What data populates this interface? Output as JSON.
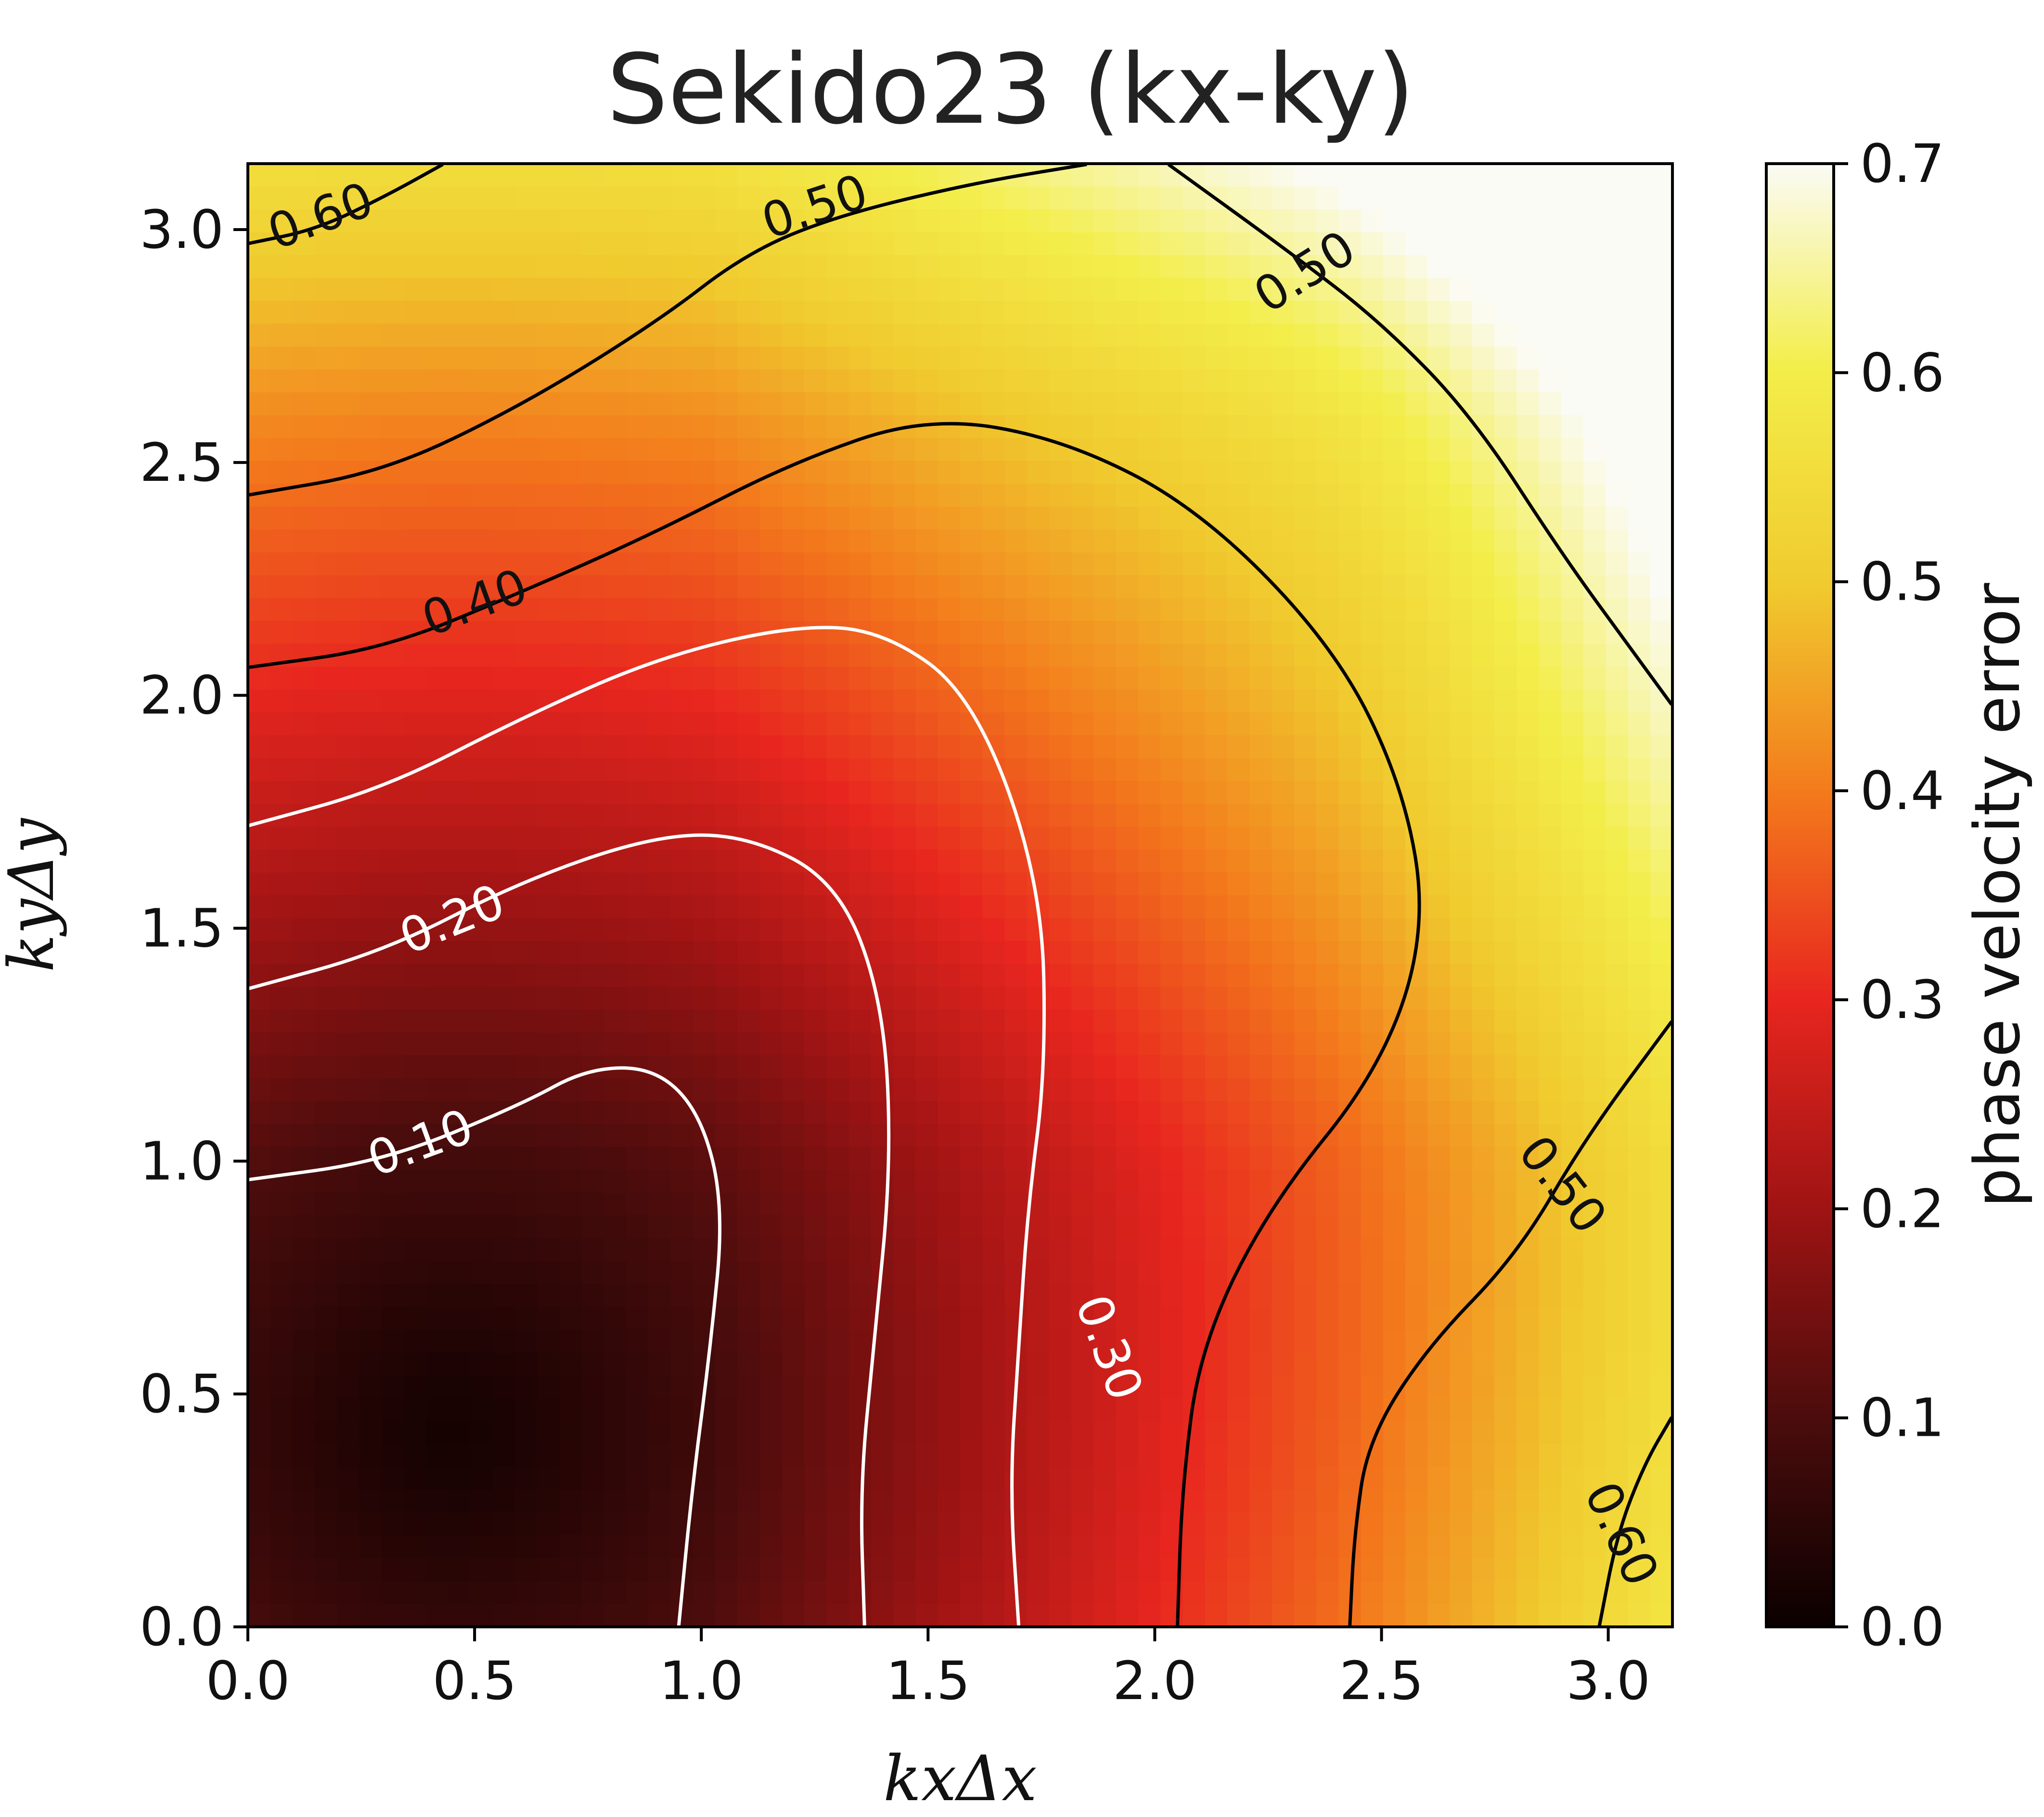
{
  "chart_data": {
    "type": "heatmap",
    "title": "Sekido23 (kx-ky)",
    "xlabel": "kxΔx",
    "ylabel": "kyΔy",
    "xlim": [
      0,
      3.1416
    ],
    "ylim": [
      0,
      3.1416
    ],
    "xticks": [
      0.0,
      0.5,
      1.0,
      1.5,
      2.0,
      2.5,
      3.0
    ],
    "yticks": [
      0.0,
      0.5,
      1.0,
      1.5,
      2.0,
      2.5,
      3.0
    ],
    "tick_labels": [
      "0.0",
      "0.5",
      "1.0",
      "1.5",
      "2.0",
      "2.5",
      "3.0"
    ],
    "colormap": "hot",
    "colorbar": {
      "label": "phase velocity error",
      "range": [
        0.0,
        0.7
      ],
      "ticks": [
        "0.0",
        "0.1",
        "0.2",
        "0.3",
        "0.4",
        "0.5",
        "0.6",
        "0.7"
      ]
    },
    "contours": [
      {
        "level": 0.1,
        "label": "0.10",
        "color": "#ffffff",
        "points": [
          [
            0.0,
            0.96
          ],
          [
            0.3,
            1.0
          ],
          [
            0.6,
            1.12
          ],
          [
            0.75,
            1.2
          ],
          [
            0.9,
            1.2
          ],
          [
            1.0,
            1.1
          ],
          [
            1.05,
            0.9
          ],
          [
            1.02,
            0.6
          ],
          [
            0.98,
            0.3
          ],
          [
            0.95,
            0.0
          ]
        ]
      },
      {
        "level": 0.2,
        "label": "0.20",
        "color": "#ffffff",
        "points": [
          [
            0.0,
            1.37
          ],
          [
            0.3,
            1.45
          ],
          [
            0.6,
            1.6
          ],
          [
            0.9,
            1.7
          ],
          [
            1.1,
            1.7
          ],
          [
            1.3,
            1.6
          ],
          [
            1.4,
            1.35
          ],
          [
            1.42,
            1.0
          ],
          [
            1.38,
            0.6
          ],
          [
            1.35,
            0.3
          ],
          [
            1.36,
            0.0
          ]
        ]
      },
      {
        "level": 0.3,
        "label": "0.30",
        "color": "#ffffff",
        "points": [
          [
            0.0,
            1.72
          ],
          [
            0.3,
            1.8
          ],
          [
            0.6,
            1.95
          ],
          [
            0.9,
            2.08
          ],
          [
            1.2,
            2.15
          ],
          [
            1.4,
            2.14
          ],
          [
            1.6,
            2.0
          ],
          [
            1.75,
            1.6
          ],
          [
            1.76,
            1.2
          ],
          [
            1.72,
            0.9
          ],
          [
            1.7,
            0.6
          ],
          [
            1.68,
            0.3
          ],
          [
            1.7,
            0.0
          ]
        ]
      },
      {
        "level": 0.4,
        "label": "0.40",
        "color": "#000000",
        "points": [
          [
            0.0,
            2.06
          ],
          [
            0.3,
            2.1
          ],
          [
            0.6,
            2.22
          ],
          [
            0.9,
            2.35
          ],
          [
            1.2,
            2.5
          ],
          [
            1.5,
            2.6
          ],
          [
            1.8,
            2.55
          ],
          [
            2.1,
            2.4
          ],
          [
            2.4,
            2.1
          ],
          [
            2.55,
            1.8
          ],
          [
            2.6,
            1.5
          ],
          [
            2.5,
            1.2
          ],
          [
            2.25,
            0.9
          ],
          [
            2.1,
            0.6
          ],
          [
            2.06,
            0.3
          ],
          [
            2.05,
            0.0
          ]
        ]
      },
      {
        "level": 0.5,
        "label": "0.50",
        "color": "#000000",
        "points": [
          [
            0.0,
            2.43
          ],
          [
            0.3,
            2.48
          ],
          [
            0.6,
            2.62
          ],
          [
            0.9,
            2.8
          ],
          [
            1.1,
            2.95
          ],
          [
            1.3,
            3.03
          ],
          [
            1.6,
            3.1
          ],
          [
            1.85,
            3.14
          ]
        ]
      },
      {
        "level": 0.5,
        "label": "0.50",
        "color": "#000000",
        "points": [
          [
            2.03,
            3.14
          ],
          [
            2.3,
            2.95
          ],
          [
            2.5,
            2.8
          ],
          [
            2.7,
            2.6
          ],
          [
            2.9,
            2.3
          ],
          [
            3.05,
            2.1
          ],
          [
            3.14,
            1.98
          ]
        ]
      },
      {
        "level": 0.5,
        "label": "0.50",
        "color": "#000000",
        "points": [
          [
            3.14,
            1.3
          ],
          [
            2.95,
            1.05
          ],
          [
            2.8,
            0.8
          ],
          [
            2.6,
            0.6
          ],
          [
            2.47,
            0.4
          ],
          [
            2.44,
            0.2
          ],
          [
            2.43,
            0.0
          ]
        ]
      },
      {
        "level": 0.6,
        "label": "0.60",
        "color": "#000000",
        "points": [
          [
            0.0,
            2.97
          ],
          [
            0.15,
            3.0
          ],
          [
            0.3,
            3.07
          ],
          [
            0.43,
            3.14
          ]
        ]
      },
      {
        "level": 0.6,
        "label": "0.60",
        "color": "#000000",
        "points": [
          [
            2.98,
            0.0
          ],
          [
            3.02,
            0.2
          ],
          [
            3.08,
            0.35
          ],
          [
            3.14,
            0.45
          ]
        ]
      }
    ],
    "contour_labels": [
      {
        "text": "0.60",
        "x": 0.16,
        "y": 3.03,
        "angle": 20
      },
      {
        "text": "0.50",
        "x": 1.25,
        "y": 3.05,
        "angle": 18
      },
      {
        "text": "0.50",
        "x": 2.33,
        "y": 2.91,
        "angle": 32
      },
      {
        "text": "0.40",
        "x": 0.5,
        "y": 2.2,
        "angle": 20
      },
      {
        "text": "0.20",
        "x": 0.45,
        "y": 1.52,
        "angle": 22
      },
      {
        "text": "0.10",
        "x": 0.38,
        "y": 1.04,
        "angle": 20
      },
      {
        "text": "0.30",
        "x": 1.9,
        "y": 0.6,
        "angle": -70
      },
      {
        "text": "0.50",
        "x": 2.9,
        "y": 0.95,
        "angle": -52
      },
      {
        "text": "0.60",
        "x": 3.03,
        "y": 0.2,
        "angle": -65
      }
    ]
  }
}
